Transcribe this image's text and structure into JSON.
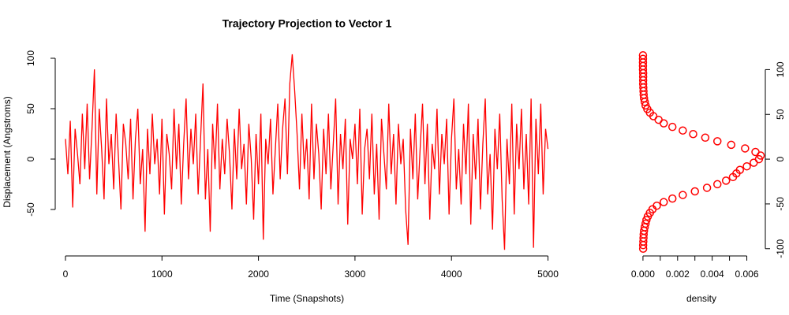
{
  "chart_data": [
    {
      "type": "line",
      "title": "Trajectory Projection to Vector 1",
      "xlabel": "Time (Snapshots)",
      "ylabel": "Displacement (Angstroms)",
      "color": "#ff0000",
      "x": [
        0,
        25,
        50,
        75,
        100,
        125,
        150,
        175,
        200,
        225,
        250,
        275,
        300,
        325,
        350,
        375,
        400,
        425,
        450,
        475,
        500,
        525,
        550,
        575,
        600,
        625,
        650,
        675,
        700,
        725,
        750,
        775,
        800,
        825,
        850,
        875,
        900,
        925,
        950,
        975,
        1000,
        1025,
        1050,
        1075,
        1100,
        1125,
        1150,
        1175,
        1200,
        1225,
        1250,
        1275,
        1300,
        1325,
        1350,
        1375,
        1400,
        1425,
        1450,
        1475,
        1500,
        1525,
        1550,
        1575,
        1600,
        1625,
        1650,
        1675,
        1700,
        1725,
        1750,
        1775,
        1800,
        1825,
        1850,
        1875,
        1900,
        1925,
        1950,
        1975,
        2000,
        2025,
        2050,
        2075,
        2100,
        2125,
        2150,
        2175,
        2200,
        2225,
        2250,
        2275,
        2300,
        2325,
        2350,
        2375,
        2400,
        2425,
        2450,
        2475,
        2500,
        2525,
        2550,
        2575,
        2600,
        2625,
        2650,
        2675,
        2700,
        2725,
        2750,
        2775,
        2800,
        2825,
        2850,
        2875,
        2900,
        2925,
        2950,
        2975,
        3000,
        3025,
        3050,
        3075,
        3100,
        3125,
        3150,
        3175,
        3200,
        3225,
        3250,
        3275,
        3300,
        3325,
        3350,
        3375,
        3400,
        3425,
        3450,
        3475,
        3500,
        3525,
        3550,
        3575,
        3600,
        3625,
        3650,
        3675,
        3700,
        3725,
        3750,
        3775,
        3800,
        3825,
        3850,
        3875,
        3900,
        3925,
        3950,
        3975,
        4000,
        4025,
        4050,
        4075,
        4100,
        4125,
        4150,
        4175,
        4200,
        4225,
        4250,
        4275,
        4300,
        4325,
        4350,
        4375,
        4400,
        4425,
        4450,
        4475,
        4500,
        4525,
        4550,
        4575,
        4600,
        4625,
        4650,
        4675,
        4700,
        4725,
        4750,
        4775,
        4800,
        4825,
        4850,
        4875,
        4900,
        4925,
        4950,
        4975,
        5000
      ],
      "values": [
        20,
        -15,
        38,
        -48,
        30,
        5,
        -25,
        45,
        -10,
        55,
        -20,
        30,
        89,
        -35,
        50,
        10,
        -40,
        60,
        -5,
        25,
        -30,
        45,
        0,
        -50,
        35,
        15,
        -20,
        40,
        -40,
        20,
        50,
        -25,
        10,
        -72,
        30,
        -15,
        45,
        -5,
        20,
        -35,
        40,
        -55,
        25,
        5,
        -30,
        50,
        -10,
        35,
        -45,
        15,
        60,
        -20,
        30,
        -5,
        45,
        -35,
        20,
        75,
        -40,
        10,
        -72,
        35,
        -10,
        55,
        -30,
        20,
        -15,
        40,
        5,
        -50,
        30,
        -20,
        50,
        -10,
        15,
        -45,
        35,
        0,
        -60,
        25,
        -25,
        45,
        -80,
        20,
        -5,
        40,
        -35,
        10,
        55,
        -20,
        30,
        60,
        -15,
        75,
        104,
        68,
        25,
        -30,
        45,
        -10,
        20,
        -40,
        55,
        -20,
        35,
        5,
        -50,
        30,
        -15,
        45,
        -30,
        15,
        60,
        -45,
        25,
        -10,
        40,
        -65,
        20,
        0,
        35,
        -25,
        50,
        -55,
        10,
        30,
        -20,
        45,
        -35,
        15,
        -60,
        40,
        5,
        -30,
        55,
        -15,
        25,
        -45,
        35,
        -5,
        20,
        -50,
        -85,
        30,
        -20,
        45,
        -40,
        10,
        55,
        -25,
        35,
        -60,
        15,
        -10,
        50,
        -35,
        25,
        -5,
        40,
        -55,
        20,
        60,
        -30,
        10,
        -45,
        35,
        -15,
        55,
        -65,
        25,
        -20,
        40,
        -50,
        15,
        60,
        -35,
        5,
        -70,
        30,
        -10,
        45,
        -40,
        -90,
        20,
        -25,
        55,
        -55,
        35,
        -10,
        50,
        -30,
        25,
        -45,
        60,
        -88,
        40,
        -15,
        55,
        -35,
        30,
        10
      ],
      "xlim": [
        -200,
        5200
      ],
      "ylim": [
        -91,
        105
      ],
      "xticks": [
        0,
        1000,
        2000,
        3000,
        4000,
        5000
      ],
      "yticks": [
        -50,
        0,
        50,
        100
      ]
    },
    {
      "type": "scatter",
      "xlabel": "density",
      "color": "#ff0000",
      "y": [
        -100,
        -96,
        -92,
        -88,
        -84,
        -80,
        -76,
        -72,
        -68,
        -64,
        -60,
        -56,
        -52,
        -48,
        -44,
        -40,
        -36,
        -32,
        -28,
        -24,
        -20,
        -16,
        -12,
        -8,
        -4,
        0,
        4,
        8,
        12,
        16,
        20,
        24,
        28,
        32,
        36,
        40,
        44,
        48,
        52,
        56,
        60,
        64,
        68,
        72,
        76,
        80,
        84,
        88,
        92,
        96,
        100,
        104,
        108,
        112,
        116
      ],
      "x": [
        1e-05,
        1e-05,
        2e-05,
        3e-05,
        4e-05,
        6e-05,
        0.0001,
        0.00015,
        0.0002,
        0.00028,
        0.0004,
        0.00055,
        0.0008,
        0.0012,
        0.0017,
        0.0023,
        0.003,
        0.0037,
        0.0043,
        0.0048,
        0.0052,
        0.0054,
        0.0056,
        0.006,
        0.0064,
        0.0067,
        0.0068,
        0.0065,
        0.0059,
        0.0051,
        0.0043,
        0.0036,
        0.0029,
        0.0023,
        0.0017,
        0.0012,
        0.0009,
        0.0006,
        0.0004,
        0.00025,
        0.00015,
        0.0001,
        6e-05,
        4e-05,
        3e-05,
        2e-05,
        1e-05,
        1e-05,
        1e-05,
        1e-05,
        0,
        0,
        0,
        0,
        0
      ],
      "xlim": [
        -0.00027,
        0.00707
      ],
      "ylim": [
        -109,
        125
      ],
      "xticks": [
        {
          "value": 0,
          "label": "0.000"
        },
        {
          "value": 0.002,
          "label": "0.002"
        },
        {
          "value": 0.004,
          "label": "0.004"
        },
        {
          "value": 0.006,
          "label": "0.006"
        }
      ],
      "minor_xticks": [
        0.001,
        0.003,
        0.005
      ],
      "y2ticks": [
        -100,
        -50,
        0,
        50,
        100
      ]
    }
  ]
}
